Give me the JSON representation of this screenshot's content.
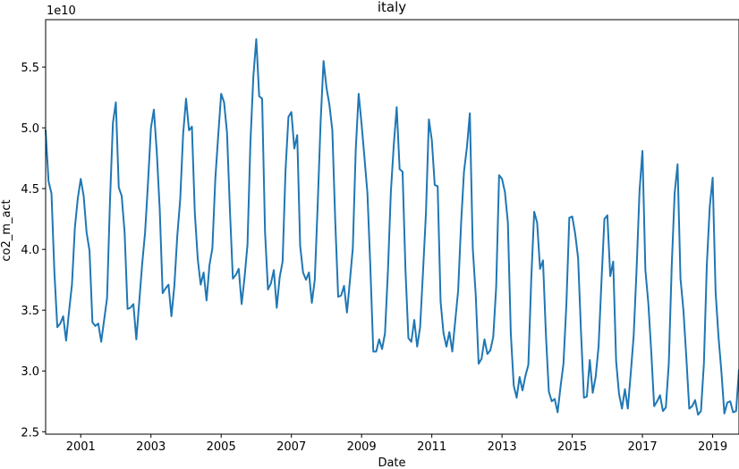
{
  "chart_data": {
    "type": "line",
    "title": "italy",
    "xlabel": "Date",
    "ylabel": "co2_m_act",
    "y_offset_label": "1e10",
    "y_scale": 10000000000,
    "xlim": [
      2000.0,
      2019.75
    ],
    "ylim": [
      2.48,
      5.89
    ],
    "x_ticks": [
      2001,
      2003,
      2005,
      2007,
      2009,
      2011,
      2013,
      2015,
      2017,
      2019
    ],
    "y_ticks": [
      2.5,
      3.0,
      3.5,
      4.0,
      4.5,
      5.0,
      5.5
    ],
    "grid": false,
    "color": "#1f77b4",
    "series": [
      {
        "x_start": 2000.0,
        "x_step_months": 1,
        "values": [
          4.98,
          4.56,
          4.46,
          3.81,
          3.36,
          3.39,
          3.45,
          3.25,
          3.49,
          3.71,
          4.18,
          4.42,
          4.58,
          4.44,
          4.14,
          3.99,
          3.4,
          3.37,
          3.39,
          3.24,
          3.42,
          3.6,
          4.4,
          5.04,
          5.21,
          4.51,
          4.44,
          4.14,
          3.51,
          3.52,
          3.55,
          3.26,
          3.57,
          3.88,
          4.14,
          4.55,
          5.0,
          5.15,
          4.8,
          4.33,
          3.64,
          3.68,
          3.71,
          3.45,
          3.7,
          4.11,
          4.41,
          4.95,
          5.24,
          4.98,
          5.01,
          4.3,
          3.92,
          3.71,
          3.81,
          3.58,
          3.87,
          4.01,
          4.58,
          4.94,
          5.28,
          5.21,
          4.96,
          4.32,
          3.76,
          3.79,
          3.84,
          3.55,
          3.77,
          4.04,
          4.88,
          5.42,
          5.73,
          5.26,
          5.24,
          4.14,
          3.67,
          3.72,
          3.83,
          3.52,
          3.77,
          3.9,
          4.65,
          5.09,
          5.13,
          4.83,
          4.94,
          4.03,
          3.81,
          3.75,
          3.81,
          3.56,
          3.75,
          4.37,
          5.05,
          5.55,
          5.33,
          5.19,
          4.98,
          4.23,
          3.61,
          3.62,
          3.7,
          3.48,
          3.74,
          4.01,
          4.82,
          5.28,
          5.03,
          4.75,
          4.46,
          3.85,
          3.16,
          3.16,
          3.26,
          3.18,
          3.31,
          3.82,
          4.47,
          4.86,
          5.17,
          4.66,
          4.64,
          3.83,
          3.27,
          3.24,
          3.42,
          3.2,
          3.36,
          3.82,
          4.3,
          5.07,
          4.9,
          4.53,
          4.52,
          3.57,
          3.31,
          3.2,
          3.32,
          3.16,
          3.41,
          3.66,
          4.21,
          4.64,
          4.84,
          5.12,
          4.01,
          3.63,
          3.06,
          3.1,
          3.26,
          3.14,
          3.17,
          3.28,
          3.69,
          4.61,
          4.58,
          4.47,
          4.22,
          3.31,
          2.88,
          2.78,
          2.95,
          2.84,
          2.96,
          3.05,
          3.76,
          4.31,
          4.22,
          3.84,
          3.91,
          3.3,
          2.83,
          2.75,
          2.77,
          2.66,
          2.87,
          3.06,
          3.55,
          4.26,
          4.27,
          4.13,
          3.93,
          3.32,
          2.78,
          2.79,
          3.09,
          2.82,
          2.95,
          3.2,
          3.74,
          4.25,
          4.28,
          3.78,
          3.9,
          3.08,
          2.81,
          2.69,
          2.85,
          2.69,
          2.98,
          3.29,
          3.84,
          4.48,
          4.81,
          3.83,
          3.56,
          3.16,
          2.71,
          2.75,
          2.8,
          2.67,
          2.7,
          3.06,
          3.86,
          4.46,
          4.7,
          3.76,
          3.5,
          3.11,
          2.69,
          2.71,
          2.76,
          2.64,
          2.67,
          3.06,
          3.87,
          4.35,
          4.59,
          3.65,
          3.28,
          2.99,
          2.65,
          2.74,
          2.75,
          2.66,
          2.67,
          3.01
        ]
      }
    ]
  }
}
